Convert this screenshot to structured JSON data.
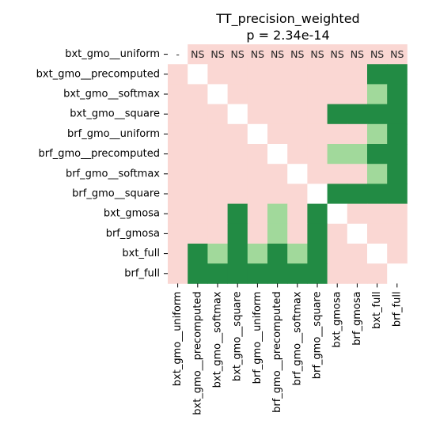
{
  "chart_data": {
    "type": "heatmap",
    "title": "TT_precision_weighted",
    "subtitle": "p = 2.34e-14",
    "row_labels": [
      "bxt_gmo__uniform",
      "bxt_gmo__precomputed",
      "bxt_gmo__softmax",
      "bxt_gmo__square",
      "brf_gmo__uniform",
      "brf_gmo__precomputed",
      "brf_gmo__softmax",
      "brf_gmo__square",
      "bxt_gmosa",
      "brf_gmosa",
      "bxt_full",
      "brf_full"
    ],
    "col_labels": [
      "bxt_gmo__uniform",
      "bxt_gmo__precomputed",
      "bxt_gmo__softmax",
      "bxt_gmo__square",
      "brf_gmo__uniform",
      "brf_gmo__precomputed",
      "brf_gmo__softmax",
      "brf_gmo__square",
      "bxt_gmosa",
      "brf_gmosa",
      "bxt_full",
      "brf_full"
    ],
    "legend": {
      "D": "#ffffff",
      "N": "#fad7d3",
      "L": "#a1d99b",
      "G": "#228b44"
    },
    "cells": [
      "DNNNNNNNNNNN",
      "NDNNNNNNNNGG",
      "NNDNNNNNNNLG",
      "NNNDNNNNGGGG",
      "NNNNDNNNNNLG",
      "NNNNNDNNLLGG",
      "NNNNNNDNNNLG",
      "NNNNNNNDGGGG",
      "NNNGNLNGDNNN",
      "NNNGNLNGNDNN",
      "NGLGLGLGNNDN",
      "NGGGGGGGNNND"
    ],
    "annotations": [
      {
        "row": 0,
        "col": 0,
        "text": "-"
      },
      {
        "row": 0,
        "col": 1,
        "text": "NS"
      },
      {
        "row": 0,
        "col": 2,
        "text": "NS"
      },
      {
        "row": 0,
        "col": 3,
        "text": "NS"
      },
      {
        "row": 0,
        "col": 4,
        "text": "NS"
      },
      {
        "row": 0,
        "col": 5,
        "text": "NS"
      },
      {
        "row": 0,
        "col": 6,
        "text": "NS"
      },
      {
        "row": 0,
        "col": 7,
        "text": "NS"
      },
      {
        "row": 0,
        "col": 8,
        "text": "NS"
      },
      {
        "row": 0,
        "col": 9,
        "text": "NS"
      },
      {
        "row": 0,
        "col": 10,
        "text": "NS"
      },
      {
        "row": 0,
        "col": 11,
        "text": "NS"
      }
    ]
  }
}
